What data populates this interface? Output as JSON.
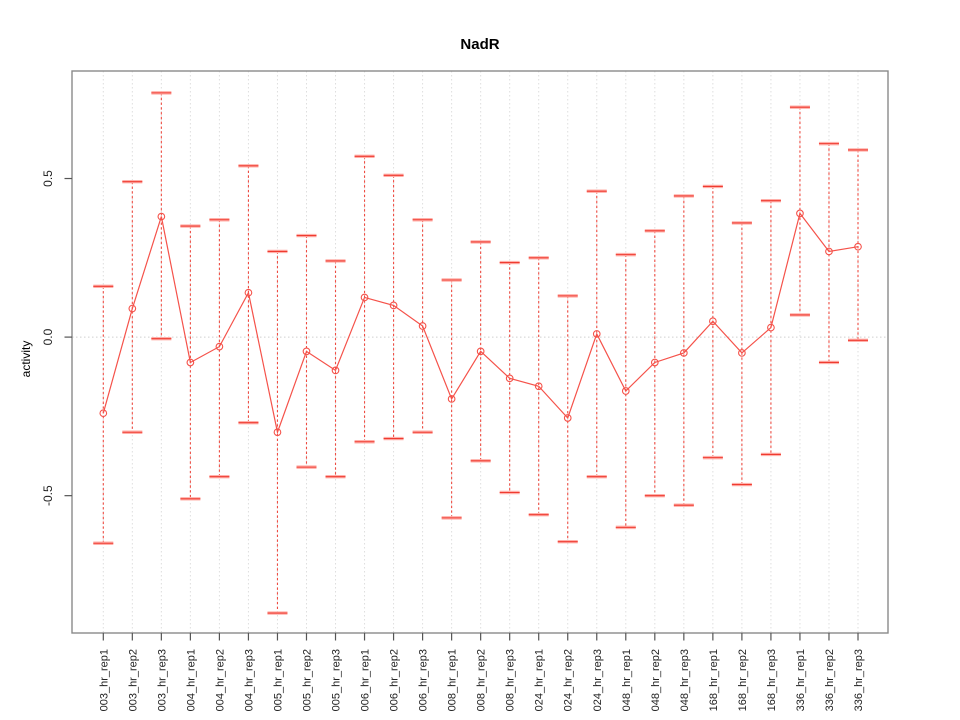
{
  "chart_data": {
    "type": "line",
    "title": "NadR",
    "xlabel": "",
    "ylabel": "activity",
    "categories": [
      "003_hr_rep1",
      "003_hr_rep2",
      "003_hr_rep3",
      "004_hr_rep1",
      "004_hr_rep2",
      "004_hr_rep3",
      "005_hr_rep1",
      "005_hr_rep2",
      "005_hr_rep3",
      "006_hr_rep1",
      "006_hr_rep2",
      "006_hr_rep3",
      "008_hr_rep1",
      "008_hr_rep2",
      "008_hr_rep3",
      "024_hr_rep1",
      "024_hr_rep2",
      "024_hr_rep3",
      "048_hr_rep1",
      "048_hr_rep2",
      "048_hr_rep3",
      "168_hr_rep1",
      "168_hr_rep2",
      "168_hr_rep3",
      "336_hr_rep1",
      "336_hr_rep2",
      "336_hr_rep3"
    ],
    "series": [
      {
        "name": "activity",
        "values": [
          -0.24,
          0.09,
          0.38,
          -0.08,
          -0.03,
          0.14,
          -0.3,
          -0.045,
          -0.105,
          0.125,
          0.1,
          0.035,
          -0.195,
          -0.045,
          -0.13,
          -0.155,
          -0.255,
          0.01,
          -0.17,
          -0.08,
          -0.05,
          0.05,
          -0.05,
          0.03,
          0.39,
          0.27,
          0.285
        ],
        "error_low": [
          -0.65,
          -0.3,
          -0.005,
          -0.51,
          -0.44,
          -0.27,
          -0.87,
          -0.41,
          -0.44,
          -0.33,
          -0.32,
          -0.3,
          -0.57,
          -0.39,
          -0.49,
          -0.56,
          -0.645,
          -0.44,
          -0.6,
          -0.5,
          -0.53,
          -0.38,
          -0.465,
          -0.37,
          0.07,
          -0.08,
          -0.01
        ],
        "error_high": [
          0.16,
          0.49,
          0.77,
          0.35,
          0.37,
          0.54,
          0.27,
          0.32,
          0.24,
          0.57,
          0.51,
          0.37,
          0.18,
          0.3,
          0.235,
          0.25,
          0.13,
          0.46,
          0.26,
          0.335,
          0.445,
          0.475,
          0.36,
          0.43,
          0.725,
          0.61,
          0.59
        ]
      }
    ],
    "yticks": [
      "-0.5",
      "0.0",
      "0.5"
    ],
    "ytick_values": [
      -0.5,
      0.0,
      0.5
    ],
    "ylim": [
      -0.933,
      0.839
    ],
    "grid": "vertical dotted gridline at each category; dotted horizontal line at y=0",
    "legend": "none",
    "marker": "open-circle",
    "error_bar_style": "dashed vertical with capped ends",
    "colors": {
      "series": "#f5524a",
      "error_core": "#ef3b30",
      "cap_halo": "#ffb0aa",
      "grid": "#dedede",
      "zero_line": "#cfcfcf",
      "border": "#8a8a8a",
      "tick": "#555555",
      "tick_label": "#222222",
      "background": "#ffffff"
    }
  }
}
